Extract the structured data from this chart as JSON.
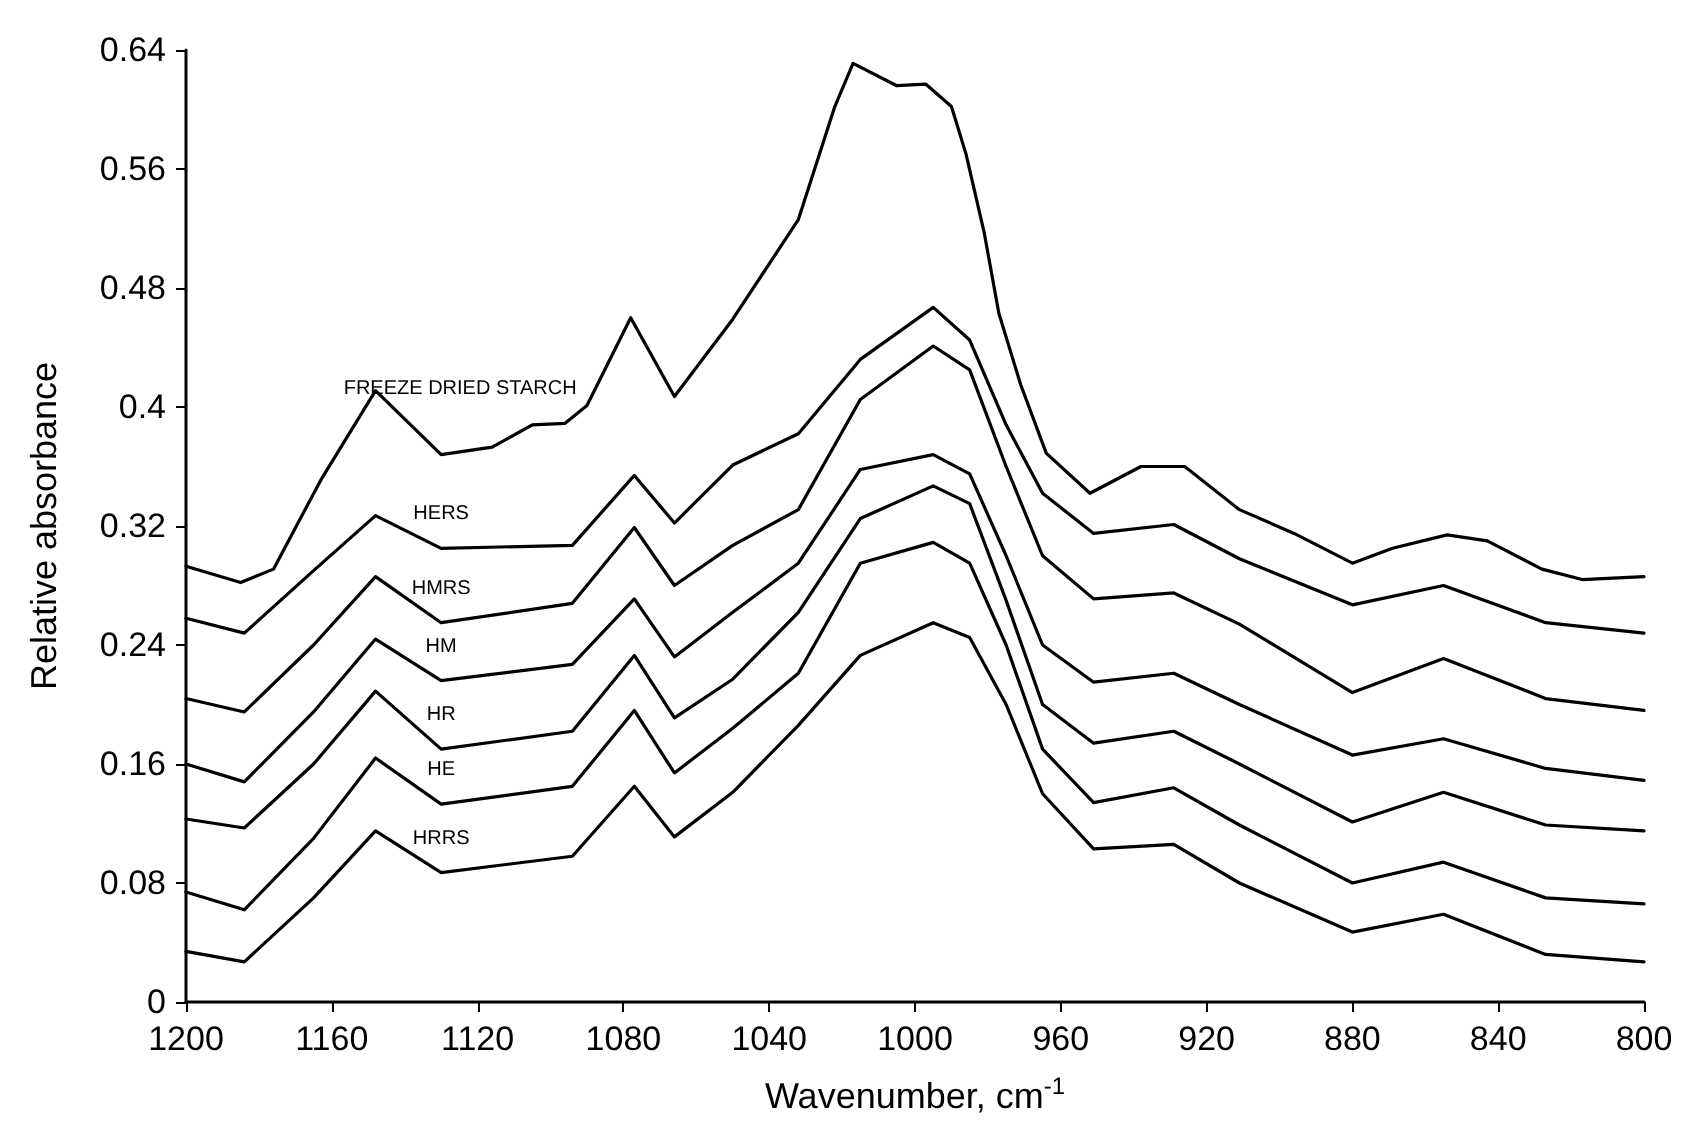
{
  "chart_data": {
    "type": "line",
    "xlabel": "Wavenumber, cm$^{-1}$",
    "ylabel": "Relative absorbance",
    "xlim": [
      1200,
      800
    ],
    "xticks": [
      1200,
      1160,
      1120,
      1080,
      1040,
      1000,
      960,
      920,
      880,
      840,
      800
    ],
    "ylim": [
      0,
      0.64
    ],
    "yticks": [
      0,
      0.08,
      0.16,
      0.24,
      0.32,
      0.4,
      0.48,
      0.56,
      0.64
    ],
    "line_style": "solid",
    "marker": "none",
    "x": [
      1200,
      1184,
      1165,
      1148,
      1130,
      1094,
      1077,
      1066,
      1050,
      1032,
      1015,
      995,
      985,
      975,
      965,
      951,
      929,
      911,
      880,
      855,
      827,
      800
    ],
    "series": [
      {
        "name": "FREEZE DRIED STARCH",
        "color": "#000000",
        "x": [
          1200,
          1185,
          1176,
          1163,
          1148,
          1130,
          1116,
          1105,
          1096,
          1090,
          1078,
          1066,
          1050,
          1032,
          1022,
          1017,
          1005,
          997,
          990,
          986,
          981,
          977,
          971,
          964,
          952,
          938,
          926,
          911,
          896,
          880,
          869,
          854,
          843,
          828,
          817,
          800
        ],
        "values": [
          0.293,
          0.282,
          0.291,
          0.351,
          0.411,
          0.368,
          0.373,
          0.388,
          0.389,
          0.401,
          0.46,
          0.407,
          0.459,
          0.526,
          0.602,
          0.631,
          0.616,
          0.617,
          0.602,
          0.57,
          0.517,
          0.463,
          0.415,
          0.369,
          0.342,
          0.36,
          0.36,
          0.331,
          0.315,
          0.295,
          0.305,
          0.314,
          0.31,
          0.291,
          0.284,
          0.286
        ]
      },
      {
        "name": "HERS",
        "color": "#000000",
        "values": [
          0.258,
          0.248,
          0.29,
          0.327,
          0.305,
          0.307,
          0.354,
          0.322,
          0.361,
          0.382,
          0.432,
          0.467,
          0.445,
          0.388,
          0.342,
          0.315,
          0.321,
          0.298,
          0.267,
          0.28,
          0.255,
          0.248
        ]
      },
      {
        "name": "HMRS",
        "color": "#000000",
        "values": [
          0.204,
          0.195,
          0.24,
          0.286,
          0.255,
          0.268,
          0.319,
          0.28,
          0.307,
          0.331,
          0.405,
          0.441,
          0.425,
          0.36,
          0.3,
          0.271,
          0.275,
          0.254,
          0.208,
          0.231,
          0.204,
          0.196
        ]
      },
      {
        "name": "HM",
        "color": "#000000",
        "values": [
          0.16,
          0.148,
          0.195,
          0.244,
          0.216,
          0.227,
          0.271,
          0.232,
          0.262,
          0.295,
          0.358,
          0.368,
          0.355,
          0.3,
          0.24,
          0.215,
          0.221,
          0.2,
          0.166,
          0.177,
          0.157,
          0.149
        ]
      },
      {
        "name": "HR",
        "color": "#000000",
        "values": [
          0.123,
          0.117,
          0.16,
          0.209,
          0.17,
          0.182,
          0.233,
          0.191,
          0.217,
          0.262,
          0.325,
          0.347,
          0.335,
          0.27,
          0.2,
          0.174,
          0.182,
          0.16,
          0.121,
          0.141,
          0.119,
          0.115
        ]
      },
      {
        "name": "HE",
        "color": "#000000",
        "values": [
          0.074,
          0.062,
          0.11,
          0.164,
          0.133,
          0.145,
          0.196,
          0.154,
          0.184,
          0.221,
          0.295,
          0.309,
          0.295,
          0.24,
          0.17,
          0.134,
          0.144,
          0.119,
          0.08,
          0.094,
          0.07,
          0.066
        ]
      },
      {
        "name": "HRRS",
        "color": "#000000",
        "values": [
          0.034,
          0.027,
          0.07,
          0.115,
          0.087,
          0.098,
          0.145,
          0.111,
          0.141,
          0.186,
          0.233,
          0.255,
          0.245,
          0.2,
          0.14,
          0.103,
          0.106,
          0.08,
          0.047,
          0.059,
          0.032,
          0.027
        ]
      }
    ]
  }
}
